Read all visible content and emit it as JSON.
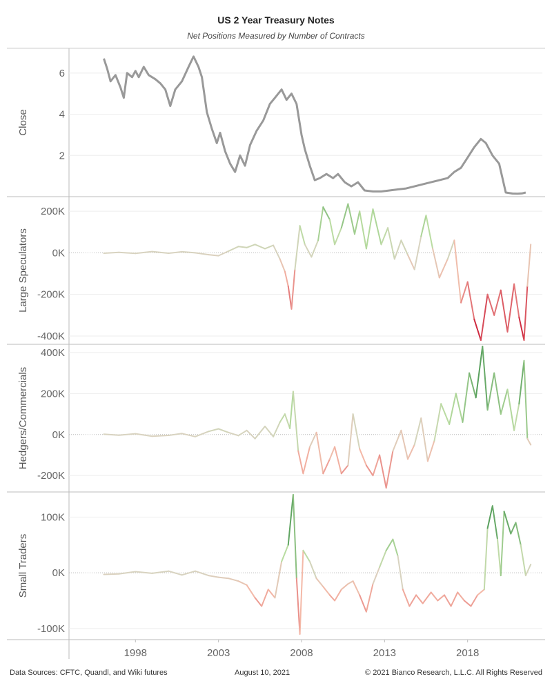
{
  "header": {
    "title": "US 2 Year Treasury Notes",
    "subtitle": "Net Positions Measured by Number of Contracts"
  },
  "footer": {
    "sources": "Data Sources: CFTC, Quandl, and Wiki futures",
    "date": "August 10, 2021",
    "copyright": "© 2021 Bianco Research, L.L.C. All Rights Reserved"
  },
  "colors": {
    "close_line": "#999999",
    "negative_strong": "#c8102e",
    "negative_light": "#f4b9a8",
    "neutral": "#d8d3c0",
    "positive_light": "#b8dca0",
    "positive_strong": "#1e7b34"
  },
  "chart_data": [
    {
      "type": "line",
      "ylabel": "Close",
      "yticks": [
        2,
        4,
        6
      ],
      "ylim": [
        0,
        7.2
      ],
      "points": [
        [
          1996.1,
          6.7
        ],
        [
          1996.3,
          6.2
        ],
        [
          1996.5,
          5.6
        ],
        [
          1996.8,
          5.9
        ],
        [
          1997.1,
          5.3
        ],
        [
          1997.3,
          4.8
        ],
        [
          1997.5,
          6.0
        ],
        [
          1997.8,
          5.8
        ],
        [
          1998.0,
          6.1
        ],
        [
          1998.2,
          5.8
        ],
        [
          1998.5,
          6.3
        ],
        [
          1998.8,
          5.9
        ],
        [
          1999.2,
          5.7
        ],
        [
          1999.5,
          5.5
        ],
        [
          1999.8,
          5.2
        ],
        [
          2000.1,
          4.4
        ],
        [
          2000.4,
          5.2
        ],
        [
          2000.8,
          5.6
        ],
        [
          2001.2,
          6.3
        ],
        [
          2001.5,
          6.8
        ],
        [
          2001.8,
          6.3
        ],
        [
          2002.0,
          5.8
        ],
        [
          2002.3,
          4.1
        ],
        [
          2002.6,
          3.3
        ],
        [
          2002.9,
          2.6
        ],
        [
          2003.1,
          3.1
        ],
        [
          2003.4,
          2.2
        ],
        [
          2003.7,
          1.6
        ],
        [
          2004.0,
          1.2
        ],
        [
          2004.3,
          2.0
        ],
        [
          2004.6,
          1.5
        ],
        [
          2004.9,
          2.5
        ],
        [
          2005.3,
          3.2
        ],
        [
          2005.7,
          3.7
        ],
        [
          2006.1,
          4.5
        ],
        [
          2006.4,
          4.8
        ],
        [
          2006.8,
          5.2
        ],
        [
          2007.1,
          4.7
        ],
        [
          2007.4,
          5.0
        ],
        [
          2007.7,
          4.5
        ],
        [
          2008.0,
          3.0
        ],
        [
          2008.2,
          2.3
        ],
        [
          2008.5,
          1.5
        ],
        [
          2008.8,
          0.8
        ],
        [
          2009.1,
          0.9
        ],
        [
          2009.5,
          1.1
        ],
        [
          2009.9,
          0.9
        ],
        [
          2010.2,
          1.1
        ],
        [
          2010.6,
          0.7
        ],
        [
          2011.0,
          0.5
        ],
        [
          2011.4,
          0.7
        ],
        [
          2011.8,
          0.3
        ],
        [
          2012.3,
          0.25
        ],
        [
          2012.8,
          0.25
        ],
        [
          2013.3,
          0.3
        ],
        [
          2013.8,
          0.35
        ],
        [
          2014.3,
          0.4
        ],
        [
          2014.8,
          0.5
        ],
        [
          2015.3,
          0.6
        ],
        [
          2015.8,
          0.7
        ],
        [
          2016.3,
          0.8
        ],
        [
          2016.8,
          0.9
        ],
        [
          2017.2,
          1.2
        ],
        [
          2017.6,
          1.4
        ],
        [
          2018.0,
          1.9
        ],
        [
          2018.4,
          2.4
        ],
        [
          2018.8,
          2.8
        ],
        [
          2019.1,
          2.6
        ],
        [
          2019.5,
          2.0
        ],
        [
          2019.9,
          1.6
        ],
        [
          2020.1,
          0.9
        ],
        [
          2020.3,
          0.2
        ],
        [
          2020.7,
          0.15
        ],
        [
          2021.0,
          0.14
        ],
        [
          2021.3,
          0.16
        ],
        [
          2021.5,
          0.2
        ]
      ],
      "color": "#999999"
    },
    {
      "type": "line",
      "ylabel": "Large Speculators",
      "yticks": [
        -400000,
        -200000,
        0,
        200000
      ],
      "ytick_labels": [
        "-400K",
        "-200K",
        "0K",
        "200K"
      ],
      "ylim": [
        -440000,
        270000
      ],
      "points": [
        [
          1996.1,
          -2000
        ],
        [
          1997.0,
          2000
        ],
        [
          1998.0,
          -3000
        ],
        [
          1999.0,
          6000
        ],
        [
          2000.0,
          -2000
        ],
        [
          2000.8,
          5000
        ],
        [
          2001.6,
          0
        ],
        [
          2002.4,
          -9000
        ],
        [
          2003.0,
          -14000
        ],
        [
          2003.6,
          8000
        ],
        [
          2004.2,
          30000
        ],
        [
          2004.7,
          25000
        ],
        [
          2005.2,
          40000
        ],
        [
          2005.8,
          20000
        ],
        [
          2006.3,
          36000
        ],
        [
          2006.7,
          -30000
        ],
        [
          2007.0,
          -90000
        ],
        [
          2007.2,
          -160000
        ],
        [
          2007.4,
          -270000
        ],
        [
          2007.6,
          -80000
        ],
        [
          2007.9,
          130000
        ],
        [
          2008.2,
          40000
        ],
        [
          2008.6,
          -20000
        ],
        [
          2009.0,
          60000
        ],
        [
          2009.3,
          220000
        ],
        [
          2009.7,
          160000
        ],
        [
          2010.0,
          40000
        ],
        [
          2010.4,
          120000
        ],
        [
          2010.8,
          235000
        ],
        [
          2011.2,
          90000
        ],
        [
          2011.5,
          200000
        ],
        [
          2011.9,
          20000
        ],
        [
          2012.3,
          210000
        ],
        [
          2012.8,
          40000
        ],
        [
          2013.2,
          120000
        ],
        [
          2013.6,
          -30000
        ],
        [
          2014.0,
          60000
        ],
        [
          2014.4,
          -10000
        ],
        [
          2014.8,
          -80000
        ],
        [
          2015.2,
          80000
        ],
        [
          2015.5,
          180000
        ],
        [
          2015.9,
          20000
        ],
        [
          2016.3,
          -120000
        ],
        [
          2016.8,
          -30000
        ],
        [
          2017.2,
          60000
        ],
        [
          2017.6,
          -240000
        ],
        [
          2018.0,
          -140000
        ],
        [
          2018.4,
          -320000
        ],
        [
          2018.8,
          -420000
        ],
        [
          2019.2,
          -200000
        ],
        [
          2019.6,
          -300000
        ],
        [
          2020.0,
          -180000
        ],
        [
          2020.4,
          -380000
        ],
        [
          2020.8,
          -150000
        ],
        [
          2021.1,
          -310000
        ],
        [
          2021.4,
          -420000
        ],
        [
          2021.6,
          -160000
        ],
        [
          2021.8,
          40000
        ]
      ]
    },
    {
      "type": "line",
      "ylabel": "Hedgers/Commercials",
      "yticks": [
        -200000,
        0,
        200000,
        400000
      ],
      "ytick_labels": [
        "-200K",
        "0K",
        "200K",
        "400K"
      ],
      "ylim": [
        -280000,
        440000
      ],
      "points": [
        [
          1996.1,
          2000
        ],
        [
          1997.0,
          -3000
        ],
        [
          1998.0,
          4000
        ],
        [
          1999.0,
          -8000
        ],
        [
          2000.0,
          -4000
        ],
        [
          2000.8,
          5000
        ],
        [
          2001.6,
          -10000
        ],
        [
          2002.4,
          15000
        ],
        [
          2003.0,
          28000
        ],
        [
          2003.6,
          10000
        ],
        [
          2004.2,
          -5000
        ],
        [
          2004.7,
          20000
        ],
        [
          2005.2,
          -20000
        ],
        [
          2005.8,
          40000
        ],
        [
          2006.3,
          -10000
        ],
        [
          2006.7,
          60000
        ],
        [
          2007.0,
          100000
        ],
        [
          2007.3,
          30000
        ],
        [
          2007.5,
          210000
        ],
        [
          2007.8,
          -80000
        ],
        [
          2008.1,
          -190000
        ],
        [
          2008.5,
          -60000
        ],
        [
          2008.9,
          10000
        ],
        [
          2009.3,
          -190000
        ],
        [
          2009.7,
          -120000
        ],
        [
          2010.0,
          -60000
        ],
        [
          2010.4,
          -190000
        ],
        [
          2010.8,
          -150000
        ],
        [
          2011.1,
          100000
        ],
        [
          2011.5,
          -70000
        ],
        [
          2011.9,
          -150000
        ],
        [
          2012.3,
          -200000
        ],
        [
          2012.7,
          -100000
        ],
        [
          2013.1,
          -260000
        ],
        [
          2013.5,
          -80000
        ],
        [
          2014.0,
          20000
        ],
        [
          2014.4,
          -120000
        ],
        [
          2014.8,
          -50000
        ],
        [
          2015.2,
          80000
        ],
        [
          2015.6,
          -130000
        ],
        [
          2016.0,
          -30000
        ],
        [
          2016.4,
          150000
        ],
        [
          2016.9,
          50000
        ],
        [
          2017.3,
          200000
        ],
        [
          2017.7,
          60000
        ],
        [
          2018.1,
          300000
        ],
        [
          2018.5,
          180000
        ],
        [
          2018.9,
          430000
        ],
        [
          2019.2,
          120000
        ],
        [
          2019.6,
          300000
        ],
        [
          2020.0,
          100000
        ],
        [
          2020.4,
          220000
        ],
        [
          2020.8,
          20000
        ],
        [
          2021.1,
          150000
        ],
        [
          2021.4,
          360000
        ],
        [
          2021.6,
          -20000
        ],
        [
          2021.8,
          -50000
        ]
      ]
    },
    {
      "type": "line",
      "ylabel": "Small Traders",
      "yticks": [
        -100000,
        0,
        100000
      ],
      "ytick_labels": [
        "-100K",
        "0K",
        "100K"
      ],
      "ylim": [
        -120000,
        145000
      ],
      "points": [
        [
          1996.1,
          -3000
        ],
        [
          1997.0,
          -2000
        ],
        [
          1998.0,
          2000
        ],
        [
          1999.0,
          -1000
        ],
        [
          2000.0,
          3000
        ],
        [
          2000.8,
          -4000
        ],
        [
          2001.6,
          3000
        ],
        [
          2002.4,
          -5000
        ],
        [
          2003.0,
          -8000
        ],
        [
          2003.6,
          -10000
        ],
        [
          2004.2,
          -15000
        ],
        [
          2004.7,
          -22000
        ],
        [
          2005.2,
          -45000
        ],
        [
          2005.6,
          -60000
        ],
        [
          2006.0,
          -30000
        ],
        [
          2006.4,
          -45000
        ],
        [
          2006.8,
          20000
        ],
        [
          2007.2,
          50000
        ],
        [
          2007.5,
          140000
        ],
        [
          2007.7,
          -10000
        ],
        [
          2007.9,
          -110000
        ],
        [
          2008.1,
          40000
        ],
        [
          2008.5,
          20000
        ],
        [
          2008.9,
          -10000
        ],
        [
          2009.3,
          -25000
        ],
        [
          2009.7,
          -40000
        ],
        [
          2010.0,
          -50000
        ],
        [
          2010.4,
          -30000
        ],
        [
          2010.8,
          -20000
        ],
        [
          2011.1,
          -15000
        ],
        [
          2011.5,
          -40000
        ],
        [
          2011.9,
          -70000
        ],
        [
          2012.3,
          -20000
        ],
        [
          2012.7,
          10000
        ],
        [
          2013.1,
          40000
        ],
        [
          2013.5,
          60000
        ],
        [
          2013.8,
          30000
        ],
        [
          2014.1,
          -30000
        ],
        [
          2014.5,
          -60000
        ],
        [
          2014.9,
          -40000
        ],
        [
          2015.3,
          -55000
        ],
        [
          2015.8,
          -35000
        ],
        [
          2016.2,
          -50000
        ],
        [
          2016.6,
          -40000
        ],
        [
          2017.0,
          -60000
        ],
        [
          2017.4,
          -35000
        ],
        [
          2017.8,
          -50000
        ],
        [
          2018.2,
          -60000
        ],
        [
          2018.6,
          -40000
        ],
        [
          2019.0,
          -30000
        ],
        [
          2019.2,
          80000
        ],
        [
          2019.5,
          120000
        ],
        [
          2019.8,
          60000
        ],
        [
          2020.0,
          -5000
        ],
        [
          2020.2,
          110000
        ],
        [
          2020.6,
          70000
        ],
        [
          2020.9,
          90000
        ],
        [
          2021.2,
          50000
        ],
        [
          2021.5,
          -5000
        ],
        [
          2021.8,
          15000
        ]
      ]
    }
  ],
  "xaxis": {
    "ticks": [
      1998,
      2003,
      2008,
      2013,
      2018
    ],
    "xlim": [
      1994.0,
      2022.5
    ]
  }
}
